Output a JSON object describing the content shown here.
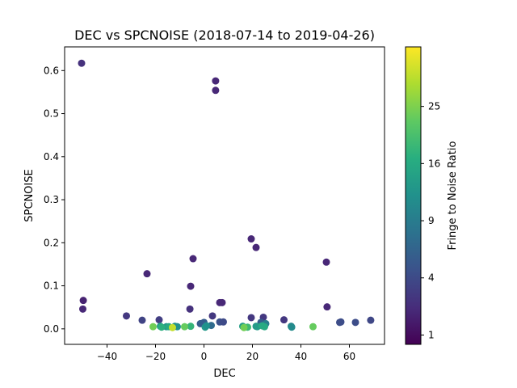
{
  "chart_data": {
    "type": "scatter",
    "title": "DEC vs SPCNOISE (2018-07-14 to 2019-04-26)",
    "xlabel": "DEC",
    "ylabel": "SPCNOISE",
    "xlim": [
      -57.5,
      74.5
    ],
    "ylim": [
      -0.036,
      0.655
    ],
    "xticks": [
      -40,
      -20,
      0,
      20,
      40,
      60
    ],
    "yticks": [
      0.0,
      0.1,
      0.2,
      0.3,
      0.4,
      0.5,
      0.6
    ],
    "colorbar": {
      "label": "Fringe to Noise Ratio",
      "scale": "sqrt",
      "range": [
        0.7,
        36.5
      ],
      "ticks": [
        1,
        4,
        9,
        16,
        25
      ],
      "colormap": "viridis"
    },
    "grid": false,
    "points": [
      {
        "x": -50.5,
        "y": 0.617,
        "c": 2.5
      },
      {
        "x": 4.8,
        "y": 0.576,
        "c": 2.0
      },
      {
        "x": 4.8,
        "y": 0.554,
        "c": 2.0
      },
      {
        "x": 19.5,
        "y": 0.209,
        "c": 2.0
      },
      {
        "x": 21.5,
        "y": 0.189,
        "c": 2.0
      },
      {
        "x": -4.5,
        "y": 0.163,
        "c": 2.0
      },
      {
        "x": 50.5,
        "y": 0.155,
        "c": 2.0
      },
      {
        "x": -23.5,
        "y": 0.128,
        "c": 2.0
      },
      {
        "x": -5.5,
        "y": 0.099,
        "c": 2.0
      },
      {
        "x": -49.8,
        "y": 0.066,
        "c": 1.8
      },
      {
        "x": 6.5,
        "y": 0.061,
        "c": 2.0
      },
      {
        "x": 7.5,
        "y": 0.061,
        "c": 2.0
      },
      {
        "x": -50.0,
        "y": 0.046,
        "c": 2.0
      },
      {
        "x": 50.8,
        "y": 0.051,
        "c": 2.0
      },
      {
        "x": -5.8,
        "y": 0.046,
        "c": 2.5
      },
      {
        "x": -32.0,
        "y": 0.03,
        "c": 2.8
      },
      {
        "x": 3.5,
        "y": 0.03,
        "c": 2.8
      },
      {
        "x": 19.5,
        "y": 0.026,
        "c": 2.8
      },
      {
        "x": 24.5,
        "y": 0.027,
        "c": 2.8
      },
      {
        "x": 33.0,
        "y": 0.021,
        "c": 2.8
      },
      {
        "x": -25.5,
        "y": 0.02,
        "c": 3.5
      },
      {
        "x": -18.5,
        "y": 0.021,
        "c": 3.2
      },
      {
        "x": 68.8,
        "y": 0.02,
        "c": 3.8
      },
      {
        "x": 56.0,
        "y": 0.015,
        "c": 4.2
      },
      {
        "x": 56.5,
        "y": 0.016,
        "c": 4.2
      },
      {
        "x": 62.5,
        "y": 0.015,
        "c": 4.2
      },
      {
        "x": 6.5,
        "y": 0.016,
        "c": 4.5
      },
      {
        "x": 8.0,
        "y": 0.016,
        "c": 4.0
      },
      {
        "x": -1.5,
        "y": 0.012,
        "c": 5.5
      },
      {
        "x": 0.0,
        "y": 0.015,
        "c": 5.5
      },
      {
        "x": 3.0,
        "y": 0.008,
        "c": 7.0
      },
      {
        "x": 23.5,
        "y": 0.015,
        "c": 5.5
      },
      {
        "x": 25.5,
        "y": 0.012,
        "c": 9.0
      },
      {
        "x": 36.0,
        "y": 0.006,
        "c": 10.0
      },
      {
        "x": 36.2,
        "y": 0.004,
        "c": 11.0
      },
      {
        "x": -18.0,
        "y": 0.006,
        "c": 13.0
      },
      {
        "x": -15.5,
        "y": 0.005,
        "c": 13.0
      },
      {
        "x": -12.0,
        "y": 0.006,
        "c": 12.0
      },
      {
        "x": -11.0,
        "y": 0.005,
        "c": 12.0
      },
      {
        "x": 0.5,
        "y": 0.004,
        "c": 13.0
      },
      {
        "x": 1.0,
        "y": 0.007,
        "c": 12.0
      },
      {
        "x": 16.0,
        "y": 0.006,
        "c": 14.0
      },
      {
        "x": 21.5,
        "y": 0.006,
        "c": 13.0
      },
      {
        "x": 22.0,
        "y": 0.005,
        "c": 13.5
      },
      {
        "x": 25.0,
        "y": 0.005,
        "c": 16.0
      },
      {
        "x": 24.0,
        "y": 0.007,
        "c": 16.0
      },
      {
        "x": -17.5,
        "y": 0.004,
        "c": 17.0
      },
      {
        "x": -14.5,
        "y": 0.005,
        "c": 16.0
      },
      {
        "x": -5.5,
        "y": 0.006,
        "c": 18.0
      },
      {
        "x": 18.0,
        "y": 0.004,
        "c": 19.0
      },
      {
        "x": -21.0,
        "y": 0.005,
        "c": 24.0
      },
      {
        "x": -8.0,
        "y": 0.005,
        "c": 23.0
      },
      {
        "x": 16.5,
        "y": 0.003,
        "c": 24.0
      },
      {
        "x": 45.0,
        "y": 0.005,
        "c": 23.0
      },
      {
        "x": -13.0,
        "y": 0.003,
        "c": 31.0
      }
    ]
  }
}
